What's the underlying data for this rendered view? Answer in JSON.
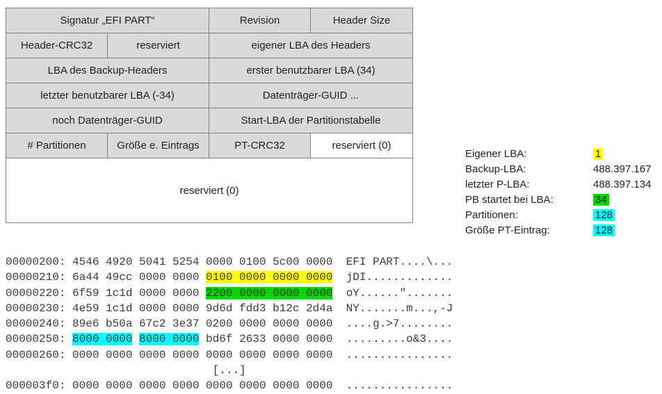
{
  "colors": {
    "yellow": "#ffff00",
    "green": "#00d800",
    "cyan": "#00ffff",
    "cell_gray": "#d9d9d9",
    "border_gray": "#7f7f7f"
  },
  "gpt_table": {
    "rows": [
      {
        "cells": [
          {
            "label": "Signatur „EFI PART“",
            "span": 2
          },
          {
            "label": "Revision",
            "span": 1
          },
          {
            "label": "Header Size",
            "span": 1
          }
        ]
      },
      {
        "cells": [
          {
            "label": "Header-CRC32",
            "span": 1
          },
          {
            "label": "reserviert",
            "span": 1
          },
          {
            "label": "eigener LBA des Headers",
            "span": 2
          }
        ]
      },
      {
        "cells": [
          {
            "label": "LBA des Backup-Headers",
            "span": 2
          },
          {
            "label": "erster benutzbarer LBA (34)",
            "span": 2
          }
        ]
      },
      {
        "cells": [
          {
            "label": "letzter benutzbarer LBA (-34)",
            "span": 2
          },
          {
            "label": "Datenträger-GUID ...",
            "span": 2
          }
        ]
      },
      {
        "cells": [
          {
            "label": "noch Datenträger-GUID",
            "span": 2
          },
          {
            "label": "Start-LBA der Partitionstabelle",
            "span": 2
          }
        ]
      },
      {
        "cells": [
          {
            "label": "# Partitionen",
            "span": 1
          },
          {
            "label": "Größe e. Eintrags",
            "span": 1
          },
          {
            "label": "PT-CRC32",
            "span": 1
          },
          {
            "label": "reserviert (0)",
            "span": 1,
            "bg": "white"
          }
        ]
      },
      {
        "tall": true,
        "cells": [
          {
            "label": "reserviert (0)",
            "span": 4,
            "bg": "white"
          }
        ]
      }
    ]
  },
  "legend": {
    "items": [
      {
        "label": "Eigener LBA:",
        "value": "1",
        "highlight": "yellow"
      },
      {
        "label": "Backup-LBA:",
        "value": "488.397.167",
        "highlight": null
      },
      {
        "label": "letzter P-LBA:",
        "value": "488.397.134",
        "highlight": null
      },
      {
        "label": "PB startet bei LBA:",
        "value": "34",
        "highlight": "green"
      },
      {
        "label": "Partitionen:",
        "value": "128",
        "highlight": "cyan"
      },
      {
        "label": "Größe PT-Eintrag:",
        "value": "128",
        "highlight": "cyan"
      }
    ]
  },
  "hexdump": {
    "lines": [
      {
        "parts": [
          {
            "t": "00000200: 4546 4920 5041 5254 0000 0100 5c00 0000  EFI PART....\\..."
          }
        ]
      },
      {
        "parts": [
          {
            "t": "00000210: 6a44 49cc 0000 0000 "
          },
          {
            "t": "0100 0000 0000 0000",
            "h": "yellow"
          },
          {
            "t": "  jDI............."
          }
        ]
      },
      {
        "parts": [
          {
            "t": "00000220: 6f59 1c1d 0000 0000 "
          },
          {
            "t": "2200 0000 0000 0000",
            "h": "green"
          },
          {
            "t": "  oY......\"......."
          }
        ]
      },
      {
        "parts": [
          {
            "t": "00000230: 4e59 1c1d 0000 0000 9d6d fdd3 b12c 2d4a  NY.......m...,-J"
          }
        ]
      },
      {
        "parts": [
          {
            "t": "00000240: 89e6 b50a 67c2 3e37 0200 0000 0000 0000  ....g.>7........"
          }
        ]
      },
      {
        "parts": [
          {
            "t": "00000250: "
          },
          {
            "t": "8000 0000",
            "h": "cyan"
          },
          {
            "t": " "
          },
          {
            "t": "8000 0000",
            "h": "cyan"
          },
          {
            "t": " bd6f 2633 0000 0000  .........o&3...."
          }
        ]
      },
      {
        "parts": [
          {
            "t": "00000260: 0000 0000 0000 0000 0000 0000 0000 0000  ................"
          }
        ]
      },
      {
        "parts": [
          {
            "t": "                               [...]"
          }
        ]
      },
      {
        "parts": [
          {
            "t": "000003f0: 0000 0000 0000 0000 0000 0000 0000 0000  ................"
          }
        ]
      }
    ]
  }
}
